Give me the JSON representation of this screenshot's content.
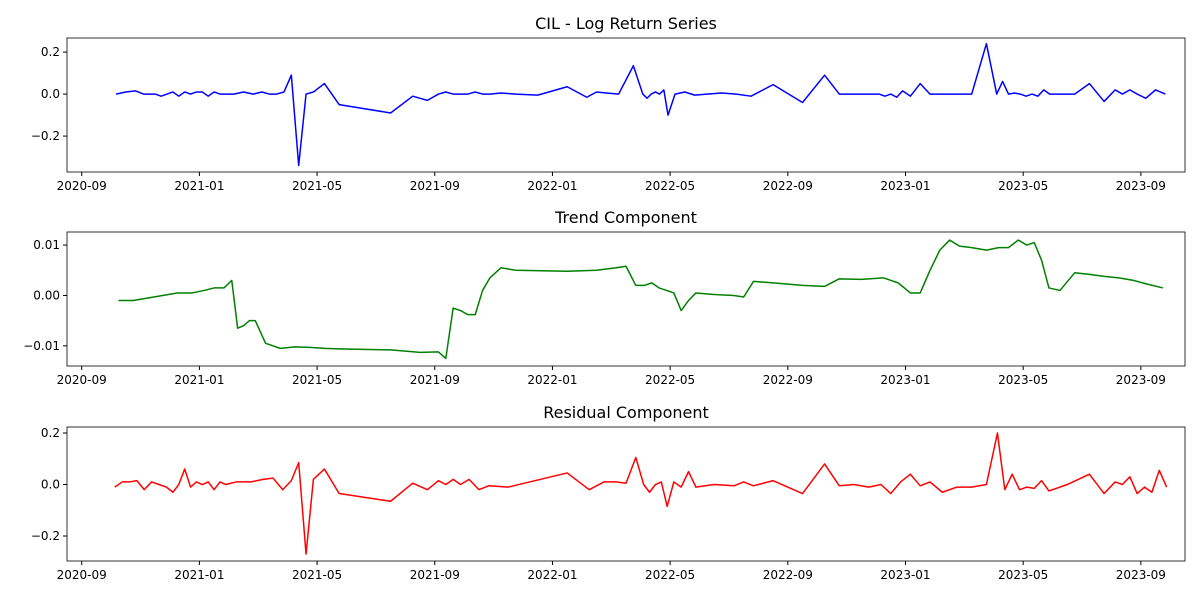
{
  "chart_data": [
    {
      "type": "line",
      "title": "CIL - Log Return Series",
      "color": "#0000ff",
      "x": [
        "2020-10",
        "2020-10",
        "2020-10",
        "2020-11",
        "2020-11",
        "2020-11",
        "2020-11",
        "2020-11",
        "2020-12",
        "2020-12",
        "2020-12",
        "2020-12",
        "2020-12",
        "2021-01",
        "2021-01",
        "2021-01",
        "2021-01",
        "2021-01",
        "2021-02",
        "2021-02",
        "2021-02",
        "2021-03",
        "2021-03",
        "2021-03",
        "2021-03",
        "2021-04",
        "2021-04",
        "2021-04",
        "2021-04",
        "2021-05",
        "2021-05",
        "2021-07",
        "2021-08",
        "2021-08",
        "2021-09",
        "2021-09",
        "2021-09",
        "2021-09",
        "2021-10",
        "2021-10",
        "2021-10",
        "2021-10",
        "2021-11",
        "2021-11",
        "2021-12",
        "2022-01",
        "2022-02",
        "2022-02",
        "2022-02",
        "2022-03",
        "2022-03",
        "2022-04",
        "2022-04",
        "2022-04",
        "2022-04",
        "2022-04",
        "2022-04",
        "2022-04",
        "2022-05",
        "2022-05",
        "2022-05",
        "2022-06",
        "2022-06",
        "2022-07",
        "2022-07",
        "2022-08",
        "2022-09",
        "2022-10",
        "2022-10",
        "2022-11",
        "2022-12",
        "2022-12",
        "2022-12",
        "2022-12",
        "2022-12",
        "2023-01",
        "2023-01",
        "2023-01",
        "2023-02",
        "2023-02",
        "2023-03",
        "2023-03",
        "2023-04",
        "2023-04",
        "2023-04",
        "2023-04",
        "2023-04",
        "2023-05",
        "2023-05",
        "2023-05",
        "2023-05",
        "2023-05",
        "2023-06",
        "2023-06",
        "2023-07",
        "2023-07",
        "2023-08",
        "2023-08",
        "2023-08",
        "2023-08",
        "2023-09",
        "2023-09",
        "2023-09"
      ],
      "values": [
        0.0,
        0.01,
        0.015,
        0.0,
        0.0,
        0.0,
        -0.01,
        0.0,
        0.01,
        -0.01,
        0.01,
        0.0,
        0.01,
        0.01,
        -0.01,
        0.01,
        0.0,
        0.0,
        0.0,
        0.01,
        0.0,
        0.01,
        0.0,
        0.0,
        0.01,
        0.09,
        -0.34,
        0.0,
        0.01,
        0.05,
        -0.05,
        -0.09,
        -0.01,
        -0.03,
        0.0,
        0.01,
        0.0,
        0.0,
        0.0,
        0.01,
        0.0,
        0.0,
        0.005,
        0.0,
        -0.005,
        0.035,
        -0.015,
        0.01,
        0.005,
        0.0,
        0.135,
        0.0,
        -0.02,
        0.0,
        0.01,
        0.0,
        0.02,
        -0.1,
        0.0,
        0.01,
        -0.005,
        0.0,
        0.005,
        0.0,
        -0.01,
        0.045,
        -0.04,
        0.09,
        0.0,
        0.0,
        0.0,
        -0.01,
        0.0,
        -0.015,
        0.015,
        -0.01,
        0.05,
        0.0,
        0.0,
        0.0,
        0.0,
        0.24,
        0.0,
        0.06,
        0.0,
        0.005,
        0.0,
        -0.01,
        0.0,
        -0.01,
        0.02,
        0.0,
        0.0,
        0.0,
        0.05,
        -0.035,
        0.02,
        0.0,
        0.02,
        0.0,
        -0.02,
        0.02,
        0.0
      ],
      "xlim": [
        "2020-08",
        "2023-10"
      ],
      "xticks": [
        "2020-09",
        "2021-01",
        "2021-05",
        "2021-09",
        "2022-01",
        "2022-05",
        "2022-09",
        "2023-01",
        "2023-05",
        "2023-09"
      ],
      "ylim": [
        -0.371,
        0.267
      ],
      "yticks": [
        {
          "value": -0.2,
          "label": "−0.2"
        },
        {
          "value": 0,
          "label": "0.0"
        },
        {
          "value": 0.2,
          "label": "0.2"
        }
      ]
    },
    {
      "type": "line",
      "title": "Trend Component",
      "color": "#008000",
      "x": [
        "2020-10",
        "2020-10",
        "2020-11",
        "2020-11",
        "2020-12",
        "2020-12",
        "2021-01",
        "2021-01",
        "2021-01",
        "2021-02",
        "2021-02",
        "2021-02",
        "2021-02",
        "2021-02",
        "2021-03",
        "2021-03",
        "2021-04",
        "2021-04",
        "2021-05",
        "2021-05",
        "2021-07",
        "2021-08",
        "2021-09",
        "2021-09",
        "2021-09",
        "2021-09",
        "2021-10",
        "2021-10",
        "2021-10",
        "2021-10",
        "2021-11",
        "2021-11",
        "2022-01",
        "2022-02",
        "2022-03",
        "2022-03",
        "2022-03",
        "2022-04",
        "2022-04",
        "2022-04",
        "2022-04",
        "2022-05",
        "2022-05",
        "2022-05",
        "2022-05",
        "2022-06",
        "2022-07",
        "2022-07",
        "2022-07",
        "2022-08",
        "2022-09",
        "2022-10",
        "2022-10",
        "2022-11",
        "2022-12",
        "2022-12",
        "2023-01",
        "2023-01",
        "2023-01",
        "2023-02",
        "2023-02",
        "2023-02",
        "2023-03",
        "2023-03",
        "2023-04",
        "2023-04",
        "2023-04",
        "2023-05",
        "2023-05",
        "2023-05",
        "2023-05",
        "2023-06",
        "2023-06",
        "2023-07",
        "2023-07",
        "2023-08",
        "2023-08",
        "2023-09",
        "2023-09"
      ],
      "values": [
        -0.001,
        -0.001,
        -0.0005,
        0.0,
        0.0005,
        0.0005,
        0.001,
        0.0015,
        0.0015,
        0.003,
        -0.0065,
        -0.006,
        -0.005,
        -0.005,
        -0.0095,
        -0.0105,
        -0.0102,
        -0.0103,
        -0.0105,
        -0.0106,
        -0.0108,
        -0.0113,
        -0.0112,
        -0.0125,
        -0.0025,
        -0.003,
        -0.0038,
        -0.0038,
        0.001,
        0.0035,
        0.0055,
        0.005,
        0.0048,
        0.005,
        0.0055,
        0.0058,
        0.002,
        0.002,
        0.0025,
        0.0015,
        0.001,
        0.0005,
        -0.003,
        -0.001,
        0.0005,
        0.0002,
        0.0,
        -0.0003,
        0.0028,
        0.0025,
        0.002,
        0.0018,
        0.0033,
        0.0032,
        0.0035,
        0.0025,
        0.0005,
        0.0005,
        0.005,
        0.009,
        0.011,
        0.0098,
        0.0095,
        0.009,
        0.0095,
        0.0095,
        0.011,
        0.01,
        0.0105,
        0.007,
        0.0015,
        0.001,
        0.0045,
        0.0042,
        0.0038,
        0.0035,
        0.003,
        0.0022,
        0.0015
      ],
      "xlim": [
        "2020-08",
        "2023-10"
      ],
      "xticks": [
        "2020-09",
        "2021-01",
        "2021-05",
        "2021-09",
        "2022-01",
        "2022-05",
        "2022-09",
        "2023-01",
        "2023-05",
        "2023-09"
      ],
      "ylim": [
        -0.014,
        0.0126
      ],
      "yticks": [
        {
          "value": -0.01,
          "label": "−0.01"
        },
        {
          "value": 0,
          "label": "0.00"
        },
        0.01
      ]
    },
    {
      "type": "line",
      "title": "Residual Component",
      "color": "#ff0000",
      "x": [
        "2020-10",
        "2020-10",
        "2020-10",
        "2020-10",
        "2020-11",
        "2020-11",
        "2020-11",
        "2020-11",
        "2020-12",
        "2020-12",
        "2020-12",
        "2020-12",
        "2020-12",
        "2021-01",
        "2021-01",
        "2021-01",
        "2021-01",
        "2021-01",
        "2021-02",
        "2021-02",
        "2021-03",
        "2021-03",
        "2021-03",
        "2021-04",
        "2021-04",
        "2021-04",
        "2021-04",
        "2021-05",
        "2021-05",
        "2021-07",
        "2021-08",
        "2021-08",
        "2021-09",
        "2021-09",
        "2021-09",
        "2021-09",
        "2021-10",
        "2021-10",
        "2021-10",
        "2021-11",
        "2022-01",
        "2022-02",
        "2022-02",
        "2022-03",
        "2022-03",
        "2022-03",
        "2022-04",
        "2022-04",
        "2022-04",
        "2022-04",
        "2022-04",
        "2022-05",
        "2022-05",
        "2022-05",
        "2022-05",
        "2022-06",
        "2022-07",
        "2022-07",
        "2022-07",
        "2022-08",
        "2022-09",
        "2022-10",
        "2022-10",
        "2022-11",
        "2022-11",
        "2022-12",
        "2022-12",
        "2022-12",
        "2023-01",
        "2023-01",
        "2023-01",
        "2023-02",
        "2023-02",
        "2023-03",
        "2023-03",
        "2023-04",
        "2023-04",
        "2023-04",
        "2023-04",
        "2023-05",
        "2023-05",
        "2023-05",
        "2023-05",
        "2023-06",
        "2023-07",
        "2023-07",
        "2023-08",
        "2023-08",
        "2023-08",
        "2023-08",
        "2023-09",
        "2023-09",
        "2023-09",
        "2023-09"
      ],
      "values": [
        -0.01,
        0.01,
        0.01,
        0.015,
        -0.02,
        0.01,
        0.0,
        -0.01,
        -0.03,
        0.0,
        0.06,
        -0.01,
        0.01,
        0.0,
        0.01,
        -0.02,
        0.01,
        0.0,
        0.01,
        0.01,
        0.02,
        0.025,
        -0.02,
        0.015,
        0.085,
        -0.27,
        0.02,
        0.06,
        -0.035,
        -0.065,
        0.005,
        -0.02,
        0.015,
        0.0,
        0.02,
        0.0,
        0.02,
        -0.02,
        -0.005,
        -0.01,
        0.045,
        -0.02,
        0.01,
        0.01,
        0.005,
        0.105,
        0.0,
        -0.03,
        0.0,
        0.01,
        -0.085,
        0.01,
        -0.01,
        0.05,
        -0.01,
        0.0,
        -0.005,
        0.01,
        -0.005,
        0.015,
        -0.035,
        0.08,
        -0.005,
        0.0,
        -0.01,
        0.0,
        -0.035,
        0.01,
        0.04,
        -0.005,
        0.01,
        -0.03,
        -0.01,
        -0.01,
        0.0,
        0.2,
        -0.02,
        0.04,
        -0.02,
        -0.01,
        -0.015,
        0.015,
        -0.025,
        0.0,
        0.04,
        -0.035,
        0.01,
        0.0,
        0.03,
        -0.035,
        -0.01,
        -0.03,
        0.055,
        -0.01
      ],
      "xlim": [
        "2020-08",
        "2023-10"
      ],
      "xticks": [
        "2020-09",
        "2021-01",
        "2021-05",
        "2021-09",
        "2022-01",
        "2022-05",
        "2022-09",
        "2023-01",
        "2023-05",
        "2023-09"
      ],
      "ylim": [
        -0.297,
        0.2233
      ],
      "yticks": [
        {
          "value": -0.2,
          "label": "−0.2"
        },
        {
          "value": 0,
          "label": "0.0"
        },
        {
          "value": 0.2,
          "label": "0.2"
        }
      ]
    }
  ]
}
